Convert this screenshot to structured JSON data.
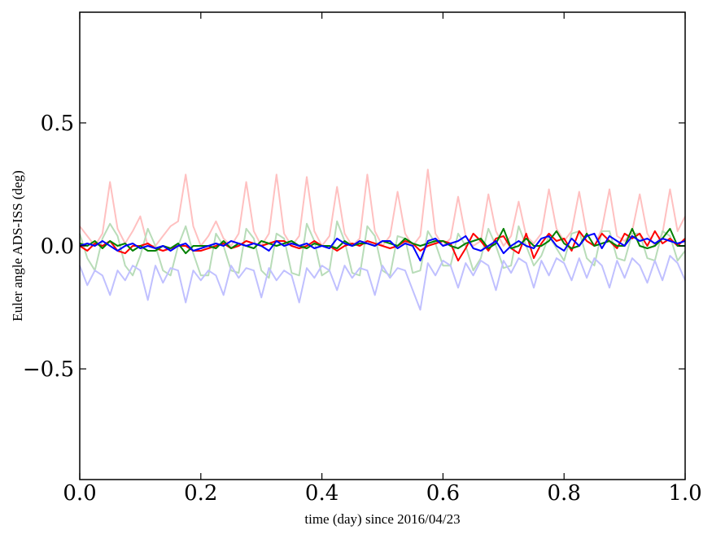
{
  "chart_data": {
    "type": "line",
    "xlabel": "time (day) since 2016/04/23",
    "ylabel": "Euler angle ADS-ISS (deg)",
    "xlim": [
      0.0,
      1.0
    ],
    "ylim": [
      -0.95,
      0.95
    ],
    "x_ticks": [
      0.0,
      0.2,
      0.4,
      0.6,
      0.8,
      1.0
    ],
    "x_tick_labels": [
      "0.0",
      "0.2",
      "0.4",
      "0.6",
      "0.8",
      "1.0"
    ],
    "y_ticks": [
      -0.5,
      0.0,
      0.5
    ],
    "y_tick_labels": [
      "−0.5",
      "0.0",
      "0.5"
    ],
    "grid": false,
    "legend": "none",
    "x": [
      0.0,
      0.0125,
      0.025,
      0.0375,
      0.05,
      0.0625,
      0.075,
      0.0875,
      0.1,
      0.1125,
      0.125,
      0.1375,
      0.15,
      0.1625,
      0.175,
      0.1875,
      0.2,
      0.2125,
      0.225,
      0.2375,
      0.25,
      0.2625,
      0.275,
      0.2875,
      0.3,
      0.3125,
      0.325,
      0.3375,
      0.35,
      0.3625,
      0.375,
      0.3875,
      0.4,
      0.4125,
      0.425,
      0.4375,
      0.45,
      0.4625,
      0.475,
      0.4875,
      0.5,
      0.5125,
      0.525,
      0.5375,
      0.55,
      0.5625,
      0.575,
      0.5875,
      0.6,
      0.6125,
      0.625,
      0.6375,
      0.65,
      0.6625,
      0.675,
      0.6875,
      0.7,
      0.7125,
      0.725,
      0.7375,
      0.75,
      0.7625,
      0.775,
      0.7875,
      0.8,
      0.8125,
      0.825,
      0.8375,
      0.85,
      0.8625,
      0.875,
      0.8875,
      0.9,
      0.9125,
      0.925,
      0.9375,
      0.95,
      0.9625,
      0.975,
      0.9875,
      1.0
    ],
    "series": [
      {
        "color": "#ffc0c0",
        "values": [
          0.08,
          0.04,
          0.0,
          0.05,
          0.26,
          0.07,
          0.01,
          0.06,
          0.12,
          0.0,
          0.0,
          0.04,
          0.08,
          0.1,
          0.29,
          0.08,
          0.0,
          0.04,
          0.1,
          0.03,
          0.0,
          0.05,
          0.26,
          0.06,
          0.0,
          0.05,
          0.29,
          0.05,
          0.0,
          0.04,
          0.28,
          0.06,
          0.0,
          0.04,
          0.24,
          0.05,
          0.0,
          0.03,
          0.29,
          0.06,
          0.0,
          0.04,
          0.22,
          0.05,
          0.0,
          0.04,
          0.31,
          0.05,
          0.0,
          0.03,
          0.2,
          0.04,
          0.0,
          0.02,
          0.21,
          0.06,
          0.0,
          0.04,
          0.18,
          0.04,
          0.01,
          0.05,
          0.23,
          0.07,
          0.02,
          0.06,
          0.22,
          0.05,
          0.0,
          0.07,
          0.23,
          0.04,
          0.02,
          0.06,
          0.21,
          0.05,
          0.0,
          0.05,
          0.23,
          0.06,
          0.12
        ]
      },
      {
        "color": "#b8dcb8",
        "values": [
          0.05,
          -0.05,
          -0.1,
          0.03,
          0.09,
          0.04,
          -0.08,
          -0.12,
          -0.04,
          0.07,
          0.0,
          -0.1,
          -0.12,
          0.0,
          0.08,
          -0.03,
          -0.12,
          -0.12,
          0.05,
          0.0,
          -0.1,
          -0.11,
          0.07,
          0.03,
          -0.1,
          -0.13,
          0.05,
          0.03,
          -0.11,
          -0.12,
          0.09,
          0.02,
          -0.12,
          -0.1,
          0.1,
          0.02,
          -0.11,
          -0.12,
          0.08,
          0.04,
          -0.1,
          -0.12,
          0.04,
          0.03,
          -0.11,
          -0.1,
          0.06,
          0.01,
          -0.08,
          -0.08,
          0.05,
          0.0,
          -0.1,
          -0.05,
          0.07,
          0.0,
          -0.09,
          -0.08,
          0.08,
          0.0,
          -0.08,
          -0.04,
          0.04,
          -0.01,
          -0.06,
          0.05,
          0.06,
          -0.05,
          -0.08,
          0.06,
          0.06,
          -0.05,
          -0.06,
          0.05,
          0.05,
          -0.05,
          -0.06,
          0.06,
          0.04,
          -0.06,
          -0.02
        ]
      },
      {
        "color": "#c0c0ff",
        "values": [
          -0.08,
          -0.16,
          -0.1,
          -0.12,
          -0.2,
          -0.1,
          -0.14,
          -0.08,
          -0.1,
          -0.22,
          -0.08,
          -0.15,
          -0.09,
          -0.1,
          -0.23,
          -0.1,
          -0.14,
          -0.1,
          -0.12,
          -0.2,
          -0.08,
          -0.13,
          -0.09,
          -0.1,
          -0.21,
          -0.09,
          -0.14,
          -0.1,
          -0.12,
          -0.23,
          -0.09,
          -0.13,
          -0.08,
          -0.1,
          -0.18,
          -0.08,
          -0.13,
          -0.09,
          -0.1,
          -0.2,
          -0.08,
          -0.13,
          -0.09,
          -0.1,
          -0.18,
          -0.26,
          -0.07,
          -0.12,
          -0.06,
          -0.08,
          -0.17,
          -0.07,
          -0.12,
          -0.06,
          -0.08,
          -0.18,
          -0.06,
          -0.11,
          -0.05,
          -0.07,
          -0.17,
          -0.06,
          -0.12,
          -0.05,
          -0.07,
          -0.14,
          -0.05,
          -0.13,
          -0.05,
          -0.08,
          -0.17,
          -0.06,
          -0.13,
          -0.05,
          -0.08,
          -0.15,
          -0.06,
          -0.14,
          -0.04,
          -0.07,
          -0.14
        ]
      },
      {
        "color": "#ff0000",
        "values": [
          0.0,
          -0.02,
          0.01,
          0.0,
          0.02,
          -0.02,
          -0.03,
          0.0,
          0.0,
          0.01,
          -0.01,
          -0.02,
          -0.01,
          0.0,
          0.0,
          -0.02,
          -0.02,
          -0.01,
          0.0,
          0.01,
          -0.01,
          0.0,
          0.02,
          0.01,
          0.0,
          0.01,
          0.02,
          0.02,
          0.0,
          -0.01,
          0.0,
          0.02,
          0.0,
          0.0,
          -0.02,
          0.0,
          0.01,
          0.0,
          0.02,
          0.01,
          0.0,
          -0.01,
          0.0,
          0.02,
          0.01,
          -0.02,
          0.0,
          0.01,
          0.02,
          0.01,
          -0.06,
          -0.01,
          0.05,
          0.02,
          -0.02,
          0.03,
          0.04,
          -0.01,
          -0.03,
          0.05,
          -0.05,
          0.01,
          0.05,
          0.02,
          0.03,
          -0.02,
          0.06,
          0.02,
          0.0,
          0.05,
          0.02,
          -0.01,
          0.05,
          0.03,
          0.05,
          0.0,
          0.06,
          0.01,
          0.03,
          0.0,
          0.03
        ]
      },
      {
        "color": "#008000",
        "values": [
          0.01,
          0.0,
          0.02,
          -0.01,
          0.02,
          0.0,
          0.01,
          -0.02,
          0.0,
          -0.02,
          -0.02,
          0.0,
          -0.01,
          0.01,
          -0.03,
          0.0,
          0.0,
          0.0,
          -0.01,
          0.02,
          -0.01,
          0.01,
          0.0,
          -0.01,
          0.02,
          0.01,
          0.0,
          0.01,
          0.02,
          0.0,
          -0.01,
          0.01,
          0.0,
          0.0,
          -0.01,
          0.02,
          0.0,
          0.01,
          0.01,
          0.0,
          0.02,
          0.01,
          0.0,
          0.03,
          0.01,
          0.0,
          0.01,
          0.02,
          0.02,
          0.0,
          -0.01,
          0.01,
          0.02,
          0.03,
          -0.01,
          0.01,
          0.07,
          -0.01,
          0.0,
          0.03,
          0.0,
          0.0,
          0.02,
          0.06,
          0.01,
          -0.01,
          0.0,
          0.05,
          0.0,
          0.01,
          0.02,
          0.0,
          0.0,
          0.07,
          0.0,
          -0.01,
          0.0,
          0.03,
          0.07,
          0.0,
          0.0
        ]
      },
      {
        "color": "#0000ff",
        "values": [
          0.0,
          0.01,
          0.0,
          0.02,
          0.0,
          -0.02,
          0.0,
          0.01,
          -0.01,
          0.0,
          -0.01,
          0.0,
          -0.02,
          0.0,
          0.01,
          -0.02,
          -0.01,
          0.0,
          0.01,
          0.0,
          0.02,
          0.01,
          0.0,
          0.01,
          0.0,
          -0.02,
          0.02,
          0.0,
          0.01,
          0.0,
          0.01,
          -0.01,
          0.0,
          -0.01,
          0.03,
          0.01,
          0.0,
          0.02,
          0.01,
          0.0,
          0.02,
          0.02,
          -0.01,
          0.01,
          0.0,
          -0.06,
          0.02,
          0.03,
          0.0,
          0.01,
          0.02,
          0.04,
          -0.01,
          -0.02,
          0.0,
          0.02,
          -0.03,
          0.0,
          0.02,
          0.0,
          -0.01,
          0.03,
          0.04,
          0.0,
          -0.02,
          0.03,
          0.0,
          0.04,
          0.05,
          -0.01,
          0.04,
          0.02,
          0.0,
          0.04,
          0.02,
          0.03,
          0.01,
          0.03,
          0.02,
          0.01,
          0.02
        ]
      }
    ]
  }
}
